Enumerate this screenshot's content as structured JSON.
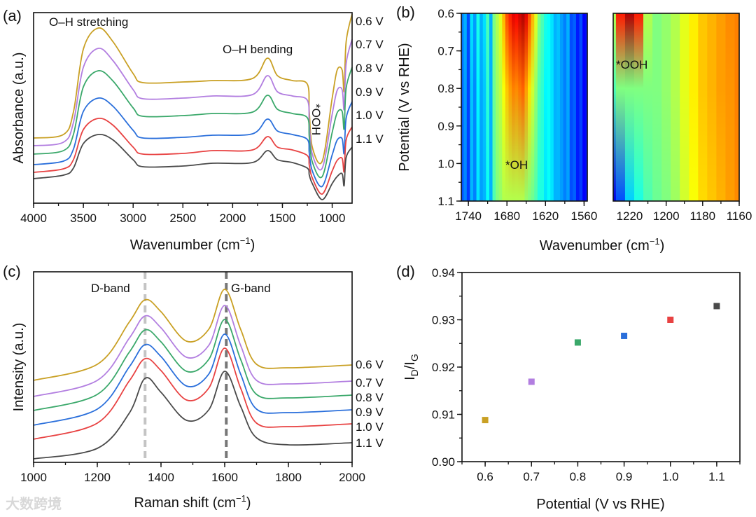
{
  "watermark": "大数跨境",
  "chart_data": [
    {
      "panel": "(a)",
      "type": "line",
      "xlabel_parts": [
        "Wavenumber (cm",
        "−1",
        ")"
      ],
      "ylabel": "Absorbance (a.u.)",
      "xlim": [
        4000,
        800
      ],
      "ylim": [
        1,
        28.2
      ],
      "xticks": [
        4000,
        3500,
        3000,
        2500,
        2000,
        1500,
        1000
      ],
      "xtick_labels": [
        "4000",
        "3500",
        "3000",
        "2500",
        "2000",
        "1500",
        "1000"
      ],
      "annotations": [
        "O–H stretching",
        "O–H bending",
        "*OOH"
      ],
      "x": [
        4000,
        3700,
        3600,
        3500,
        3350,
        3200,
        3000,
        2900,
        2500,
        2200,
        1800,
        1650,
        1550,
        1400,
        1250,
        1230,
        1200,
        1100,
        1000,
        950,
        900,
        880,
        860,
        800
      ],
      "series": [
        {
          "name": "0.6 V",
          "color": "#c9a024",
          "values": [
            10.3,
            10.8,
            14.0,
            23.0,
            26.0,
            24.0,
            19.5,
            18.2,
            18.3,
            18.5,
            18.8,
            21.7,
            19.2,
            18.5,
            18.0,
            14.0,
            9.0,
            7.0,
            16.0,
            20.0,
            20.0,
            17.0,
            24.0,
            28.0
          ]
        },
        {
          "name": "0.7 V",
          "color": "#b27ee0",
          "values": [
            9.2,
            9.7,
            12.5,
            20.4,
            23.1,
            21.3,
            17.2,
            15.9,
            16.0,
            16.3,
            16.5,
            19.2,
            16.9,
            16.3,
            15.7,
            12.3,
            8.0,
            6.0,
            13.7,
            17.1,
            17.2,
            14.4,
            20.9,
            24.4
          ]
        },
        {
          "name": "0.8 V",
          "color": "#3aa86a",
          "values": [
            8.0,
            8.5,
            10.8,
            17.6,
            19.9,
            18.4,
            14.6,
            13.4,
            13.5,
            13.8,
            14.0,
            16.4,
            14.4,
            13.8,
            13.2,
            10.4,
            6.9,
            4.8,
            11.1,
            13.9,
            14.1,
            11.6,
            17.4,
            20.4
          ]
        },
        {
          "name": "0.9 V",
          "color": "#2a6fdb",
          "values": [
            6.5,
            7.0,
            8.7,
            14.1,
            16.0,
            14.8,
            11.4,
            10.3,
            10.4,
            10.7,
            10.9,
            13.0,
            11.3,
            10.8,
            10.1,
            8.1,
            5.6,
            3.4,
            7.9,
            10.0,
            10.2,
            8.1,
            13.1,
            15.5
          ]
        },
        {
          "name": "1.0 V",
          "color": "#e84242",
          "values": [
            5.4,
            5.9,
            7.2,
            11.5,
            13.1,
            12.1,
            9.0,
            8.0,
            8.1,
            8.5,
            8.6,
            10.5,
            9.0,
            8.6,
            7.8,
            6.4,
            4.6,
            2.3,
            5.6,
            7.1,
            7.4,
            5.5,
            10.0,
            11.9
          ]
        },
        {
          "name": "1.1 V",
          "color": "#4a4a4a",
          "values": [
            4.5,
            5.0,
            6.0,
            9.5,
            10.8,
            10.0,
            7.2,
            6.2,
            6.3,
            6.7,
            6.8,
            8.5,
            7.2,
            6.8,
            6.0,
            5.0,
            3.8,
            1.5,
            3.8,
            4.8,
            5.2,
            3.5,
            7.5,
            9.0
          ]
        }
      ]
    },
    {
      "panel": "(b)",
      "type": "heatmap",
      "xlabel_parts": [
        "Wavenumber (cm",
        "−1",
        ")"
      ],
      "ylabel": "Potential (V vs RHE)",
      "ylim": [
        0.6,
        1.1
      ],
      "yticks": [
        "0.6",
        "0.7",
        "0.8",
        "0.9",
        "1.0",
        "1.1"
      ],
      "row_potentials": [
        0.6,
        0.8,
        1.1
      ],
      "colormap": "jet",
      "maps": [
        {
          "annotation": "*OH",
          "xlim": [
            1751,
            1555
          ],
          "xticks": [
            "1740",
            "1680",
            "1620",
            "1560"
          ],
          "x": [
            1750,
            1745,
            1740,
            1735,
            1730,
            1725,
            1720,
            1715,
            1710,
            1705,
            1700,
            1695,
            1690,
            1685,
            1680,
            1675,
            1670,
            1665,
            1660,
            1655,
            1650,
            1645,
            1640,
            1635,
            1630,
            1625,
            1620,
            1615,
            1610,
            1605,
            1600,
            1595,
            1590,
            1585,
            1580,
            1575,
            1570,
            1565,
            1560,
            1555
          ],
          "rows": [
            [
              0.25,
              0.3,
              0.2,
              0.35,
              0.28,
              0.4,
              0.3,
              0.35,
              0.45,
              0.3,
              0.5,
              0.55,
              0.6,
              0.7,
              0.8,
              0.85,
              0.9,
              0.88,
              0.92,
              0.95,
              0.9,
              0.8,
              0.7,
              0.6,
              0.5,
              0.45,
              0.4,
              0.38,
              0.35,
              0.3,
              0.32,
              0.28,
              0.25,
              0.3,
              0.2,
              0.22,
              0.15,
              0.2,
              0.12,
              0.15
            ],
            [
              0.22,
              0.28,
              0.19,
              0.32,
              0.26,
              0.37,
              0.29,
              0.32,
              0.42,
              0.3,
              0.48,
              0.53,
              0.56,
              0.62,
              0.68,
              0.72,
              0.75,
              0.74,
              0.76,
              0.78,
              0.72,
              0.65,
              0.58,
              0.52,
              0.45,
              0.42,
              0.37,
              0.38,
              0.35,
              0.3,
              0.31,
              0.28,
              0.25,
              0.29,
              0.2,
              0.22,
              0.15,
              0.19,
              0.12,
              0.15
            ],
            [
              0.2,
              0.25,
              0.18,
              0.3,
              0.25,
              0.35,
              0.28,
              0.3,
              0.38,
              0.3,
              0.45,
              0.5,
              0.52,
              0.55,
              0.55,
              0.55,
              0.55,
              0.55,
              0.55,
              0.55,
              0.52,
              0.5,
              0.48,
              0.45,
              0.4,
              0.4,
              0.35,
              0.38,
              0.35,
              0.3,
              0.3,
              0.28,
              0.25,
              0.28,
              0.2,
              0.22,
              0.15,
              0.18,
              0.12,
              0.15
            ]
          ]
        },
        {
          "annotation": "*OOH",
          "xlim": [
            1229,
            1160
          ],
          "xticks": [
            "1220",
            "1200",
            "1180",
            "1160"
          ],
          "x": [
            1230,
            1225,
            1220,
            1215,
            1210,
            1205,
            1200,
            1195,
            1190,
            1185,
            1180,
            1175,
            1170,
            1165,
            1160
          ],
          "rows": [
            [
              0.55,
              0.85,
              0.95,
              0.85,
              0.55,
              0.5,
              0.52,
              0.55,
              0.6,
              0.64,
              0.68,
              0.7,
              0.72,
              0.74,
              0.75
            ],
            [
              0.45,
              0.5,
              0.5,
              0.5,
              0.5,
              0.5,
              0.52,
              0.55,
              0.6,
              0.64,
              0.68,
              0.7,
              0.72,
              0.73,
              0.75
            ],
            [
              0.1,
              0.2,
              0.33,
              0.4,
              0.45,
              0.48,
              0.5,
              0.53,
              0.58,
              0.62,
              0.66,
              0.68,
              0.7,
              0.72,
              0.74
            ]
          ]
        }
      ]
    },
    {
      "panel": "(c)",
      "type": "line",
      "xlabel_parts": [
        "Raman shift (cm",
        "−1",
        ")"
      ],
      "ylabel": "Intensity (a.u.)",
      "xlim": [
        1000,
        2000
      ],
      "ylim": [
        1,
        28.2
      ],
      "xticks": [
        1000,
        1200,
        1400,
        1600,
        1800,
        2000
      ],
      "xtick_labels": [
        "1000",
        "1200",
        "1400",
        "1600",
        "1800",
        "2000"
      ],
      "annotations": [
        "D-band",
        "G-band"
      ],
      "reference_lines": [
        1350,
        1605
      ],
      "x": [
        1000,
        1200,
        1300,
        1350,
        1400,
        1480,
        1550,
        1600,
        1650,
        1700,
        1800,
        2000
      ],
      "series": [
        {
          "name": "0.6 V",
          "color": "#c9a024",
          "values": [
            12.7,
            15.0,
            21.0,
            24.2,
            22.5,
            18.3,
            20.0,
            25.7,
            20.0,
            15.0,
            14.5,
            14.9
          ]
        },
        {
          "name": "0.7 V",
          "color": "#b27ee0",
          "values": [
            10.4,
            12.7,
            18.7,
            21.9,
            20.2,
            16.0,
            17.7,
            23.4,
            17.7,
            12.7,
            12.2,
            12.6
          ]
        },
        {
          "name": "0.8 V",
          "color": "#3aa86a",
          "values": [
            8.4,
            10.7,
            16.7,
            19.9,
            18.2,
            14.0,
            15.7,
            21.4,
            15.7,
            10.7,
            10.2,
            10.6
          ]
        },
        {
          "name": "0.9 V",
          "color": "#2a6fdb",
          "values": [
            6.3,
            8.6,
            14.6,
            17.8,
            16.1,
            11.9,
            13.6,
            19.3,
            13.6,
            8.6,
            8.1,
            8.5
          ]
        },
        {
          "name": "1.0 V",
          "color": "#e84242",
          "values": [
            4.3,
            6.6,
            12.6,
            15.8,
            14.1,
            9.9,
            11.6,
            17.3,
            11.6,
            6.6,
            6.1,
            6.5
          ]
        },
        {
          "name": "1.1 V",
          "color": "#4a4a4a",
          "values": [
            1.5,
            3.0,
            8.0,
            13.0,
            11.0,
            7.0,
            8.5,
            14.0,
            9.0,
            4.5,
            3.5,
            3.8
          ]
        }
      ]
    },
    {
      "panel": "(d)",
      "type": "scatter",
      "xlabel": "Potential (V vs RHE)",
      "ylabel_parts": [
        "I",
        "D",
        "/I",
        "G"
      ],
      "xlim": [
        0.55,
        1.15
      ],
      "ylim": [
        0.9,
        0.94
      ],
      "xticks": [
        "0.6",
        "0.7",
        "0.8",
        "0.9",
        "1.0",
        "1.1"
      ],
      "yticks": [
        "0.90",
        "0.91",
        "0.92",
        "0.93",
        "0.94"
      ],
      "x": [
        0.6,
        0.7,
        0.8,
        0.9,
        1.0,
        1.1
      ],
      "y": [
        0.9088,
        0.9169,
        0.9252,
        0.9266,
        0.93,
        0.9329
      ],
      "colors": [
        "#c9a024",
        "#b27ee0",
        "#3aa86a",
        "#2a6fdb",
        "#e84242",
        "#4a4a4a"
      ]
    }
  ]
}
